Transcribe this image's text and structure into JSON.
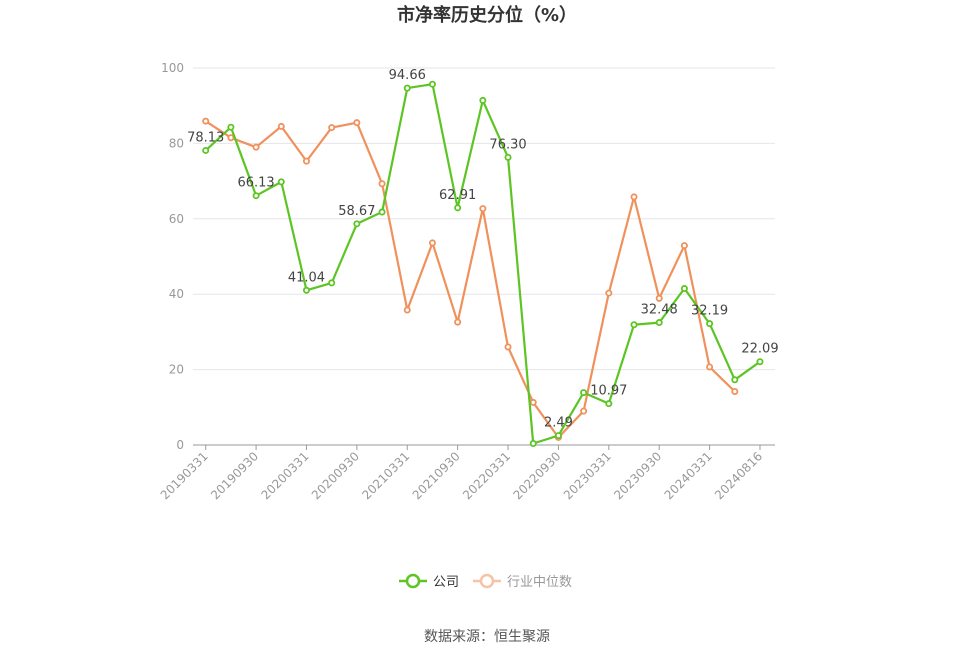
{
  "chart_data": {
    "type": "line",
    "title": "市净率历史分位（%）",
    "xlabel": "",
    "ylabel": "",
    "ylim": [
      0,
      100
    ],
    "yticks": [
      0,
      20,
      40,
      60,
      80,
      100
    ],
    "grid": true,
    "legend_position": "bottom",
    "x": [
      "20190331",
      "20190630",
      "20190930",
      "20191231",
      "20200331",
      "20200630",
      "20200930",
      "20201231",
      "20210331",
      "20210630",
      "20210930",
      "20211231",
      "20220331",
      "20220630",
      "20220930",
      "20221231",
      "20230331",
      "20230630",
      "20230930",
      "20231231",
      "20240331",
      "20240630",
      "20240816"
    ],
    "x_tick_labels": [
      "20190331",
      "20190930",
      "20200331",
      "20200930",
      "20210331",
      "20210930",
      "20220331",
      "20220930",
      "20230331",
      "20230930",
      "20240331",
      "20240816"
    ],
    "series": [
      {
        "name": "公司",
        "color": "#5cc524",
        "values": [
          78.13,
          84.3,
          66.13,
          69.8,
          41.04,
          43.0,
          58.67,
          61.8,
          94.66,
          95.7,
          62.91,
          91.4,
          76.3,
          0.4,
          2.49,
          13.9,
          10.97,
          31.9,
          32.48,
          41.5,
          32.19,
          17.3,
          22.09
        ],
        "labels": [
          "78.13",
          null,
          "66.13",
          null,
          "41.04",
          null,
          "58.67",
          null,
          "94.66",
          null,
          "62.91",
          null,
          "76.30",
          null,
          "2.49",
          null,
          "10.97",
          null,
          "32.48",
          null,
          "32.19",
          null,
          "22.09"
        ]
      },
      {
        "name": "行业中位数",
        "color": "#f0915c",
        "values": [
          85.9,
          81.5,
          79.0,
          84.5,
          75.3,
          84.2,
          85.5,
          69.3,
          35.8,
          53.6,
          32.6,
          62.7,
          26.0,
          11.3,
          2.0,
          9.0,
          40.3,
          65.8,
          38.9,
          52.9,
          20.7,
          14.2,
          null
        ]
      }
    ]
  },
  "source": "数据来源：恒生聚源"
}
